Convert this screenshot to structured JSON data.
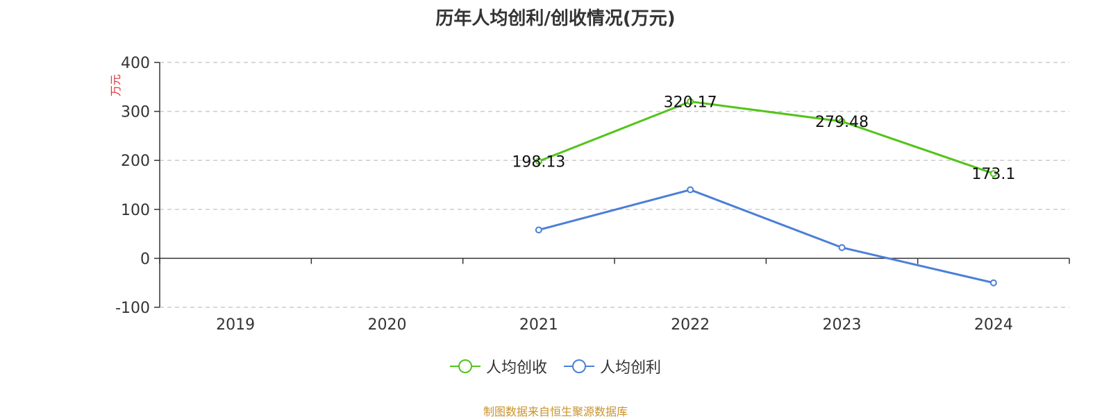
{
  "chart_data": {
    "type": "line",
    "title": "历年人均创利/创收情况(万元)",
    "ylabel": "万元",
    "categories": [
      "2019",
      "2020",
      "2021",
      "2022",
      "2023",
      "2024"
    ],
    "ylim": [
      -100,
      400
    ],
    "yticks": [
      -100,
      0,
      100,
      200,
      300,
      400
    ],
    "grid": true,
    "legend_position": "bottom-center",
    "series": [
      {
        "name": "人均创收",
        "color": "#52c41a",
        "values": [
          null,
          null,
          198.13,
          320.17,
          279.48,
          173.1
        ],
        "labels": [
          "",
          "",
          "198.13",
          "320.17",
          "279.48",
          "173.1"
        ]
      },
      {
        "name": "人均创利",
        "color": "#4a7fd8",
        "values": [
          null,
          null,
          58,
          140,
          22,
          -50
        ],
        "labels": [
          "",
          "",
          "",
          "",
          "",
          ""
        ]
      }
    ],
    "source": "制图数据来自恒生聚源数据库"
  }
}
